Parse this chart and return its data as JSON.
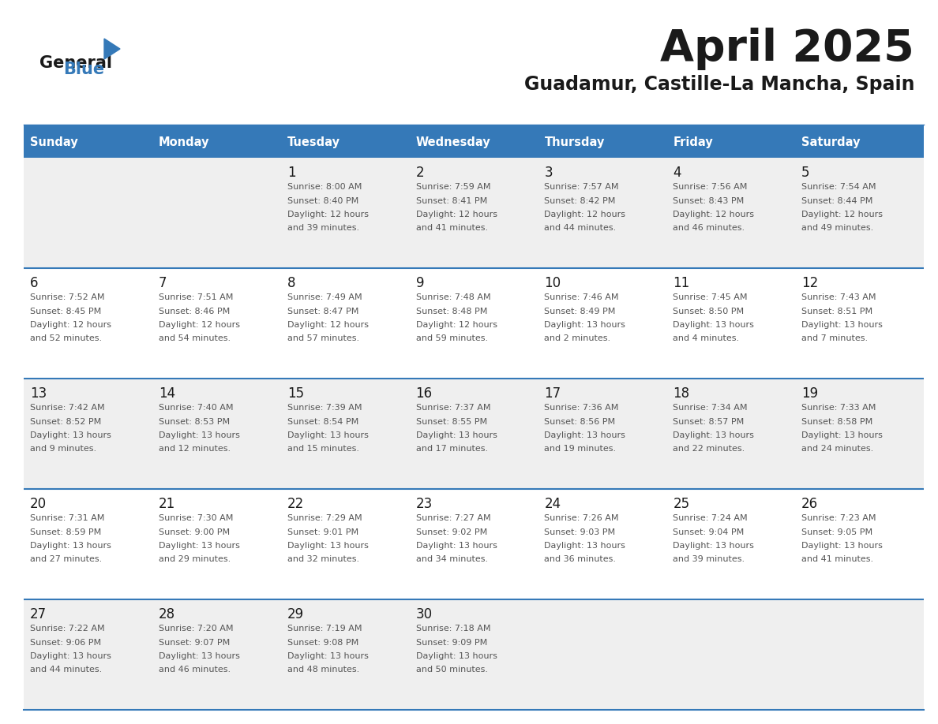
{
  "title": "April 2025",
  "subtitle": "Guadamur, Castille-La Mancha, Spain",
  "header_color": "#3579b8",
  "header_text_color": "#ffffff",
  "bg_color": "#ffffff",
  "row_odd_color": "#efefef",
  "row_even_color": "#ffffff",
  "border_color": "#3579b8",
  "days_of_week": [
    "Sunday",
    "Monday",
    "Tuesday",
    "Wednesday",
    "Thursday",
    "Friday",
    "Saturday"
  ],
  "text_color": "#333333",
  "day_num_color": "#1a1a1a",
  "weeks": [
    [
      {
        "day": "",
        "info": ""
      },
      {
        "day": "",
        "info": ""
      },
      {
        "day": "1",
        "info": "Sunrise: 8:00 AM\nSunset: 8:40 PM\nDaylight: 12 hours\nand 39 minutes."
      },
      {
        "day": "2",
        "info": "Sunrise: 7:59 AM\nSunset: 8:41 PM\nDaylight: 12 hours\nand 41 minutes."
      },
      {
        "day": "3",
        "info": "Sunrise: 7:57 AM\nSunset: 8:42 PM\nDaylight: 12 hours\nand 44 minutes."
      },
      {
        "day": "4",
        "info": "Sunrise: 7:56 AM\nSunset: 8:43 PM\nDaylight: 12 hours\nand 46 minutes."
      },
      {
        "day": "5",
        "info": "Sunrise: 7:54 AM\nSunset: 8:44 PM\nDaylight: 12 hours\nand 49 minutes."
      }
    ],
    [
      {
        "day": "6",
        "info": "Sunrise: 7:52 AM\nSunset: 8:45 PM\nDaylight: 12 hours\nand 52 minutes."
      },
      {
        "day": "7",
        "info": "Sunrise: 7:51 AM\nSunset: 8:46 PM\nDaylight: 12 hours\nand 54 minutes."
      },
      {
        "day": "8",
        "info": "Sunrise: 7:49 AM\nSunset: 8:47 PM\nDaylight: 12 hours\nand 57 minutes."
      },
      {
        "day": "9",
        "info": "Sunrise: 7:48 AM\nSunset: 8:48 PM\nDaylight: 12 hours\nand 59 minutes."
      },
      {
        "day": "10",
        "info": "Sunrise: 7:46 AM\nSunset: 8:49 PM\nDaylight: 13 hours\nand 2 minutes."
      },
      {
        "day": "11",
        "info": "Sunrise: 7:45 AM\nSunset: 8:50 PM\nDaylight: 13 hours\nand 4 minutes."
      },
      {
        "day": "12",
        "info": "Sunrise: 7:43 AM\nSunset: 8:51 PM\nDaylight: 13 hours\nand 7 minutes."
      }
    ],
    [
      {
        "day": "13",
        "info": "Sunrise: 7:42 AM\nSunset: 8:52 PM\nDaylight: 13 hours\nand 9 minutes."
      },
      {
        "day": "14",
        "info": "Sunrise: 7:40 AM\nSunset: 8:53 PM\nDaylight: 13 hours\nand 12 minutes."
      },
      {
        "day": "15",
        "info": "Sunrise: 7:39 AM\nSunset: 8:54 PM\nDaylight: 13 hours\nand 15 minutes."
      },
      {
        "day": "16",
        "info": "Sunrise: 7:37 AM\nSunset: 8:55 PM\nDaylight: 13 hours\nand 17 minutes."
      },
      {
        "day": "17",
        "info": "Sunrise: 7:36 AM\nSunset: 8:56 PM\nDaylight: 13 hours\nand 19 minutes."
      },
      {
        "day": "18",
        "info": "Sunrise: 7:34 AM\nSunset: 8:57 PM\nDaylight: 13 hours\nand 22 minutes."
      },
      {
        "day": "19",
        "info": "Sunrise: 7:33 AM\nSunset: 8:58 PM\nDaylight: 13 hours\nand 24 minutes."
      }
    ],
    [
      {
        "day": "20",
        "info": "Sunrise: 7:31 AM\nSunset: 8:59 PM\nDaylight: 13 hours\nand 27 minutes."
      },
      {
        "day": "21",
        "info": "Sunrise: 7:30 AM\nSunset: 9:00 PM\nDaylight: 13 hours\nand 29 minutes."
      },
      {
        "day": "22",
        "info": "Sunrise: 7:29 AM\nSunset: 9:01 PM\nDaylight: 13 hours\nand 32 minutes."
      },
      {
        "day": "23",
        "info": "Sunrise: 7:27 AM\nSunset: 9:02 PM\nDaylight: 13 hours\nand 34 minutes."
      },
      {
        "day": "24",
        "info": "Sunrise: 7:26 AM\nSunset: 9:03 PM\nDaylight: 13 hours\nand 36 minutes."
      },
      {
        "day": "25",
        "info": "Sunrise: 7:24 AM\nSunset: 9:04 PM\nDaylight: 13 hours\nand 39 minutes."
      },
      {
        "day": "26",
        "info": "Sunrise: 7:23 AM\nSunset: 9:05 PM\nDaylight: 13 hours\nand 41 minutes."
      }
    ],
    [
      {
        "day": "27",
        "info": "Sunrise: 7:22 AM\nSunset: 9:06 PM\nDaylight: 13 hours\nand 44 minutes."
      },
      {
        "day": "28",
        "info": "Sunrise: 7:20 AM\nSunset: 9:07 PM\nDaylight: 13 hours\nand 46 minutes."
      },
      {
        "day": "29",
        "info": "Sunrise: 7:19 AM\nSunset: 9:08 PM\nDaylight: 13 hours\nand 48 minutes."
      },
      {
        "day": "30",
        "info": "Sunrise: 7:18 AM\nSunset: 9:09 PM\nDaylight: 13 hours\nand 50 minutes."
      },
      {
        "day": "",
        "info": ""
      },
      {
        "day": "",
        "info": ""
      },
      {
        "day": "",
        "info": ""
      }
    ]
  ],
  "logo_general_color": "#1a1a1a",
  "logo_blue_color": "#3579b8",
  "logo_triangle_color": "#3579b8",
  "title_color": "#1a1a1a",
  "subtitle_color": "#1a1a1a"
}
